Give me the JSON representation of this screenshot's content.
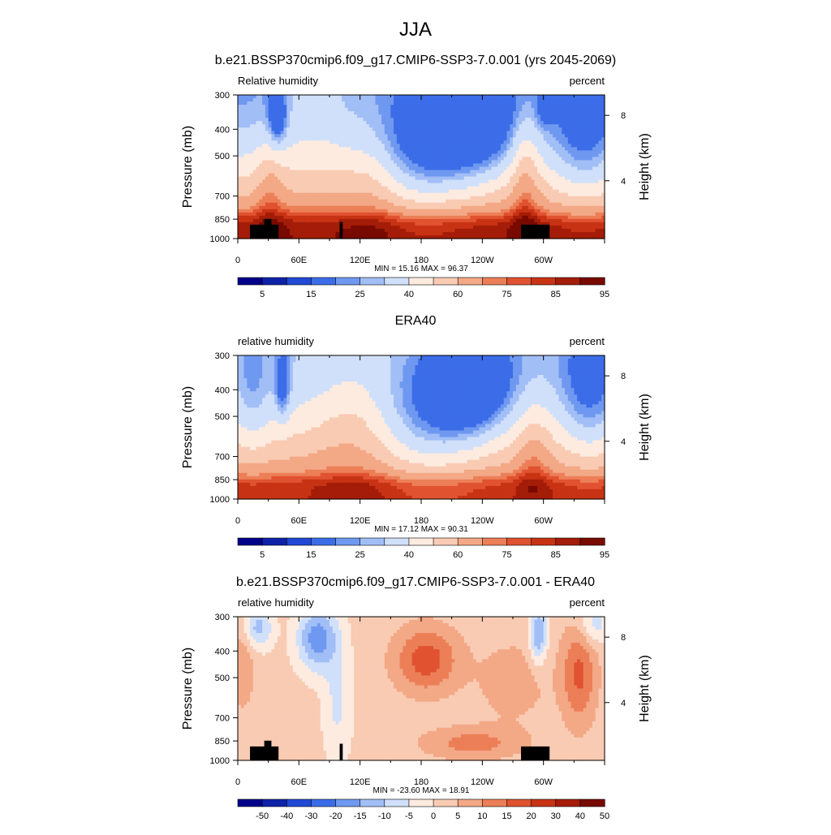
{
  "figure": {
    "title": "JJA"
  },
  "colors": {
    "rh_palette": [
      "#00008b",
      "#0e22a8",
      "#2248d6",
      "#3c6de8",
      "#6f98f0",
      "#a2bef6",
      "#d0e0fa",
      "#fdebe0",
      "#f9cbb3",
      "#f3a886",
      "#ec7f57",
      "#e05230",
      "#c83314",
      "#a41d08",
      "#780a00"
    ],
    "diff_palette": [
      "#00008b",
      "#0e22a8",
      "#2248d6",
      "#3c6de8",
      "#6f98f0",
      "#a2bef6",
      "#d0e0fa",
      "#fdebe0",
      "#f9cbb3",
      "#f3a886",
      "#ec7f57",
      "#e05230",
      "#c83314",
      "#a41d08",
      "#780a00"
    ],
    "topography": "#000000"
  },
  "panels": [
    {
      "title": "b.e21.BSSP370cmip6.f09_g17.CMIP6-SSP3-7.0.001 (yrs 2045-2069)",
      "left_label": "Relative humidity",
      "right_label": "percent",
      "stats": "MIN =  15.16  MAX =  96.37",
      "kind": "rh"
    },
    {
      "title": "ERA40",
      "left_label": "relative humidity",
      "right_label": "percent",
      "stats": "MIN =  17.12  MAX =  90.31",
      "kind": "era"
    },
    {
      "title": "b.e21.BSSP370cmip6.f09_g17.CMIP6-SSP3-7.0.001 - ERA40",
      "left_label": "relative humidity",
      "right_label": "percent",
      "stats": "MIN = -23.60  MAX =  18.91",
      "kind": "diff"
    }
  ],
  "chart_data": [
    {
      "type": "heatmap",
      "title": "b.e21.BSSP370cmip6.f09_g17.CMIP6-SSP3-7.0.001 (yrs 2045-2069)",
      "xlabel": "",
      "ylabel": "Pressure (mb)",
      "y2label": "Height (km)",
      "x_ticks": [
        "0",
        "60E",
        "120E",
        "180",
        "120W",
        "60W"
      ],
      "x_tick_lon": [
        0,
        60,
        120,
        180,
        240,
        300
      ],
      "xlim": [
        0,
        360
      ],
      "y_ticks": [
        "300",
        "400",
        "500",
        "700",
        "850",
        "1000"
      ],
      "y_tick_p": [
        300,
        400,
        500,
        700,
        850,
        1000
      ],
      "ylim": [
        1000,
        300
      ],
      "y2_ticks": [
        "8",
        "4"
      ],
      "y2_tick_p": [
        356,
        616
      ],
      "colorbar_labels": [
        "5",
        "15",
        "25",
        "40",
        "60",
        "75",
        "85",
        "95"
      ],
      "min": 15.16,
      "max": 96.37,
      "grid": false
    },
    {
      "type": "heatmap",
      "title": "ERA40",
      "xlabel": "",
      "ylabel": "Pressure (mb)",
      "y2label": "Height (km)",
      "x_ticks": [
        "0",
        "60E",
        "120E",
        "180",
        "120W",
        "60W"
      ],
      "x_tick_lon": [
        0,
        60,
        120,
        180,
        240,
        300
      ],
      "xlim": [
        0,
        360
      ],
      "y_ticks": [
        "300",
        "400",
        "500",
        "700",
        "850",
        "1000"
      ],
      "y_tick_p": [
        300,
        400,
        500,
        700,
        850,
        1000
      ],
      "ylim": [
        1000,
        300
      ],
      "y2_ticks": [
        "8",
        "4"
      ],
      "y2_tick_p": [
        356,
        616
      ],
      "colorbar_labels": [
        "5",
        "15",
        "25",
        "40",
        "60",
        "75",
        "85",
        "95"
      ],
      "min": 17.12,
      "max": 90.31,
      "grid": false
    },
    {
      "type": "heatmap",
      "title": "b.e21.BSSP370cmip6.f09_g17.CMIP6-SSP3-7.0.001 - ERA40",
      "xlabel": "",
      "ylabel": "Pressure (mb)",
      "y2label": "Height (km)",
      "x_ticks": [
        "0",
        "60E",
        "120E",
        "180",
        "120W",
        "60W"
      ],
      "x_tick_lon": [
        0,
        60,
        120,
        180,
        240,
        300
      ],
      "xlim": [
        0,
        360
      ],
      "y_ticks": [
        "300",
        "400",
        "500",
        "700",
        "850",
        "1000"
      ],
      "y_tick_p": [
        300,
        400,
        500,
        700,
        850,
        1000
      ],
      "ylim": [
        1000,
        300
      ],
      "y2_ticks": [
        "8",
        "4"
      ],
      "y2_tick_p": [
        356,
        616
      ],
      "colorbar_labels": [
        "-50",
        "-40",
        "-30",
        "-20",
        "-15",
        "-10",
        "-5",
        "0",
        "5",
        "10",
        "15",
        "20",
        "30",
        "40",
        "50"
      ],
      "min": -23.6,
      "max": 18.91,
      "grid": false
    }
  ]
}
